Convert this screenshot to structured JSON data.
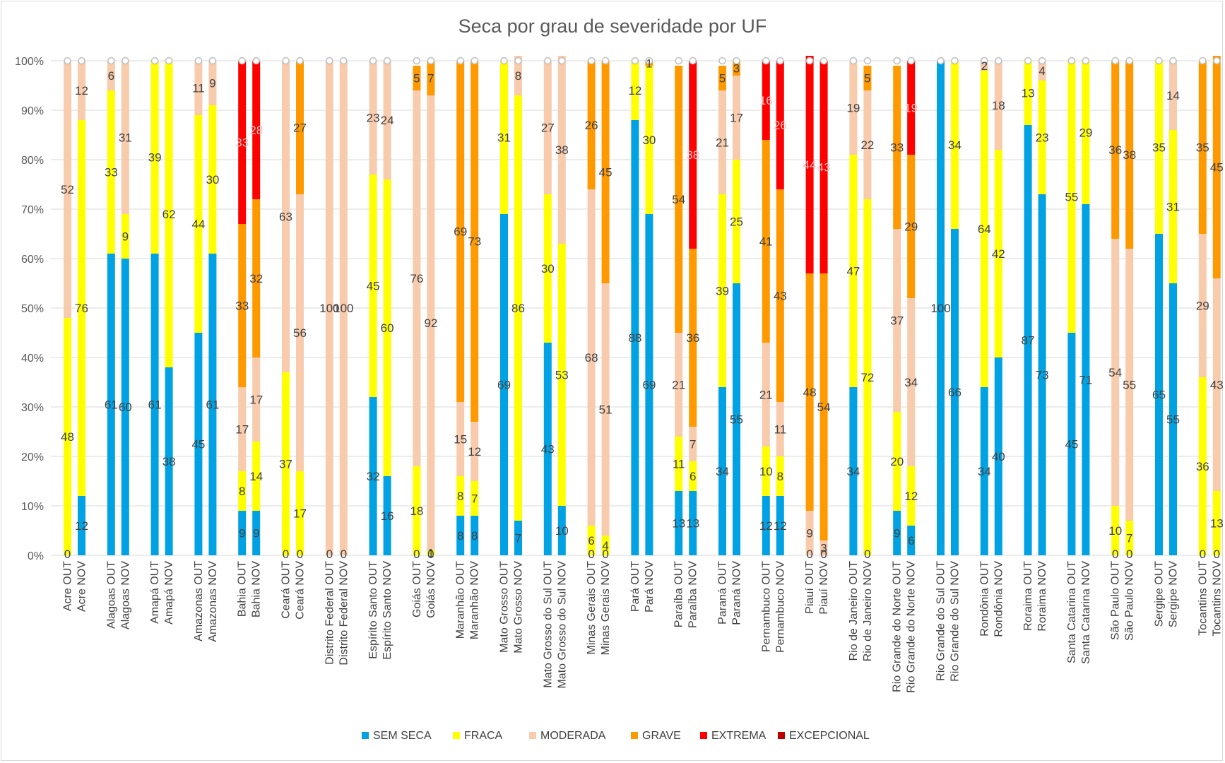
{
  "chart_data": {
    "type": "bar",
    "stacked": true,
    "title": "Seca por grau de severidade por UF",
    "xlabel": "",
    "ylabel": "",
    "ylim": [
      0,
      100
    ],
    "y_ticks": [
      "0%",
      "10%",
      "20%",
      "30%",
      "40%",
      "50%",
      "60%",
      "70%",
      "80%",
      "90%",
      "100%"
    ],
    "grid": true,
    "legend_position": "bottom",
    "states": [
      "Acre",
      "Alagoas",
      "Amapá",
      "Amazonas",
      "Bahia",
      "Ceará",
      "Distrito Federal",
      "Espírito Santo",
      "Goiás",
      "Maranhão",
      "Mato Grosso",
      "Mato Grosso do Sul",
      "Minas Gerais",
      "Pará",
      "Paraíba",
      "Paraná",
      "Pernambuco",
      "Piauí",
      "Rio de Janeiro",
      "Rio Grande do Norte",
      "Rio Grande do Sul",
      "Rondônia",
      "Roraima",
      "Santa Catarina",
      "São Paulo",
      "Sergipe",
      "Tocantins"
    ],
    "categories": [
      "Acre OUT",
      "Acre NOV",
      "Alagoas OUT",
      "Alagoas NOV",
      "Amapá OUT",
      "Amapá NOV",
      "Amazonas OUT",
      "Amazonas NOV",
      "Bahia OUT",
      "Bahia NOV",
      "Ceará OUT",
      "Ceará NOV",
      "Distrito Federal OUT",
      "Distrito Federal NOV",
      "Espírito Santo OUT",
      "Espírito Santo NOV",
      "Goiás OUT",
      "Goiás NOV",
      "Maranhão OUT",
      "Maranhão NOV",
      "Mato Grosso OUT",
      "Mato Grosso NOV",
      "Mato Grosso do Sul OUT",
      "Mato Grosso do Sul NOV",
      "Minas Gerais OUT",
      "Minas Gerais NOV",
      "Pará OUT",
      "Pará NOV",
      "Paraíba OUT",
      "Paraíba NOV",
      "Paraná OUT",
      "Paraná NOV",
      "Pernambuco OUT",
      "Pernambuco NOV",
      "Piauí OUT",
      "Piauí NOV",
      "Rio de Janeiro OUT",
      "Rio de Janeiro NOV",
      "Rio Grande do Norte OUT",
      "Rio Grande do Norte NOV",
      "Rio Grande do Sul OUT",
      "Rio Grande do Sul NOV",
      "Rondônia OUT",
      "Rondônia NOV",
      "Roraima OUT",
      "Roraima NOV",
      "Santa Catarina OUT",
      "Santa Catarina NOV",
      "São Paulo OUT",
      "São Paulo NOV",
      "Sergipe OUT",
      "Sergipe NOV",
      "Tocantins OUT",
      "Tocantins NOV"
    ],
    "series": [
      {
        "name": "SEM SECA",
        "color": "#00a2e3",
        "label_color": "#404040",
        "values": [
          0,
          12,
          61,
          60,
          61,
          38,
          45,
          61,
          9,
          9,
          0,
          0,
          0,
          0,
          32,
          16,
          0,
          0,
          8,
          8,
          69,
          7,
          43,
          10,
          0,
          0,
          88,
          69,
          13,
          13,
          34,
          55,
          12,
          12,
          0,
          0,
          34,
          0,
          9,
          6,
          100,
          66,
          34,
          40,
          87,
          73,
          45,
          71,
          0,
          0,
          65,
          55,
          0,
          0
        ]
      },
      {
        "name": "FRACA",
        "color": "#ffff00",
        "label_color": "#404040",
        "values": [
          48,
          76,
          33,
          9,
          39,
          62,
          44,
          30,
          8,
          14,
          37,
          17,
          0,
          0,
          45,
          60,
          18,
          1,
          8,
          7,
          31,
          86,
          30,
          53,
          6,
          4,
          12,
          30,
          11,
          6,
          39,
          25,
          10,
          8,
          0,
          0,
          47,
          72,
          20,
          12,
          0,
          34,
          64,
          42,
          13,
          23,
          55,
          29,
          10,
          7,
          35,
          31,
          36,
          13
        ]
      },
      {
        "name": "MODERADA",
        "color": "#f8cbad",
        "label_color": "#404040",
        "values": [
          52,
          12,
          6,
          31,
          0,
          0,
          11,
          9,
          17,
          17,
          63,
          56,
          100,
          100,
          23,
          24,
          76,
          92,
          15,
          12,
          0,
          8,
          27,
          38,
          68,
          51,
          0,
          0,
          21,
          7,
          21,
          17,
          21,
          11,
          9,
          3,
          19,
          22,
          37,
          34,
          0,
          0,
          2,
          18,
          0,
          4,
          0,
          0,
          54,
          55,
          0,
          14,
          29,
          43
        ]
      },
      {
        "name": "GRAVE",
        "color": "#ff9900",
        "label_color": "#404040",
        "values": [
          0,
          0,
          0,
          0,
          0,
          0,
          0,
          0,
          33,
          32,
          0,
          27,
          0,
          0,
          0,
          0,
          5,
          7,
          69,
          73,
          0,
          0,
          0,
          0,
          26,
          45,
          0,
          1,
          54,
          36,
          5,
          3,
          41,
          43,
          48,
          54,
          0,
          5,
          33,
          29,
          0,
          0,
          0,
          0,
          0,
          0,
          0,
          0,
          36,
          38,
          0,
          0,
          35,
          45
        ]
      },
      {
        "name": "EXTREMA",
        "color": "#ff0000",
        "label_color": "#f3c1c1",
        "values": [
          0,
          0,
          0,
          0,
          0,
          0,
          0,
          0,
          33,
          28,
          0,
          0,
          0,
          0,
          0,
          0,
          0,
          0,
          0,
          0,
          0,
          0,
          0,
          0,
          0,
          0,
          0,
          0,
          0,
          38,
          0,
          0,
          16,
          26,
          44,
          43,
          0,
          0,
          0,
          19,
          0,
          0,
          0,
          0,
          0,
          0,
          0,
          0,
          0,
          0,
          0,
          0,
          0,
          0
        ]
      },
      {
        "name": "EXCEPCIONAL",
        "color": "#c00000",
        "label_color": "#404040",
        "values": [
          0,
          0,
          0,
          0,
          0,
          0,
          0,
          0,
          0,
          0,
          0,
          0,
          0,
          0,
          0,
          0,
          0,
          0,
          0,
          0,
          0,
          0,
          0,
          0,
          0,
          0,
          0,
          0,
          0,
          0,
          0,
          0,
          0,
          0,
          0,
          0,
          0,
          0,
          0,
          0,
          0,
          0,
          0,
          0,
          0,
          0,
          0,
          0,
          0,
          0,
          0,
          0,
          0,
          0
        ]
      }
    ],
    "visible_labels": {
      "SEM SECA": [
        0,
        12,
        61,
        60,
        61,
        38,
        45,
        61,
        9,
        9,
        0,
        0,
        0,
        0,
        32,
        16,
        0,
        0,
        8,
        8,
        69,
        7,
        43,
        10,
        0,
        0,
        88,
        69,
        13,
        13,
        34,
        55,
        12,
        12,
        0,
        0,
        34,
        0,
        9,
        6,
        100,
        66,
        34,
        40,
        87,
        73,
        45,
        71,
        0,
        0,
        65,
        55,
        0,
        0
      ],
      "FRACA": [
        48,
        76,
        33,
        9,
        39,
        62,
        44,
        30,
        8,
        14,
        37,
        17,
        0,
        0,
        45,
        60,
        18,
        1,
        8,
        7,
        31,
        86,
        30,
        53,
        6,
        4,
        12,
        30,
        11,
        6,
        39,
        25,
        10,
        8,
        0,
        0,
        47,
        72,
        20,
        12,
        0,
        34,
        64,
        42,
        13,
        23,
        55,
        29,
        10,
        7,
        35,
        31,
        36,
        13
      ],
      "MODERADA": [
        52,
        12,
        6,
        31,
        0,
        0,
        11,
        9,
        17,
        17,
        63,
        56,
        100,
        100,
        23,
        24,
        76,
        92,
        15,
        12,
        0,
        8,
        27,
        38,
        68,
        51,
        0,
        0,
        21,
        7,
        21,
        17,
        21,
        11,
        9,
        3,
        19,
        22,
        37,
        34,
        0,
        0,
        2,
        18,
        0,
        4,
        0,
        0,
        54,
        55,
        0,
        14,
        29,
        43
      ],
      "GRAVE": [
        0,
        0,
        0,
        0,
        0,
        0,
        0,
        0,
        33,
        32,
        0,
        27,
        0,
        0,
        0,
        0,
        5,
        7,
        69,
        73,
        0,
        0,
        0,
        0,
        26,
        45,
        0,
        1,
        54,
        36,
        5,
        3,
        41,
        43,
        48,
        54,
        0,
        5,
        33,
        29,
        0,
        0,
        0,
        0,
        0,
        0,
        0,
        0,
        36,
        38,
        0,
        0,
        35,
        45
      ],
      "EXTREMA": [
        0,
        0,
        0,
        0,
        0,
        0,
        0,
        0,
        33,
        28,
        0,
        0,
        0,
        0,
        0,
        0,
        0,
        0,
        0,
        0,
        0,
        0,
        0,
        0,
        0,
        0,
        0,
        0,
        0,
        38,
        0,
        0,
        16,
        26,
        44,
        43,
        0,
        0,
        0,
        19,
        0,
        0,
        0,
        0,
        0,
        0,
        0,
        0,
        0,
        0,
        0,
        0,
        0,
        0
      ]
    }
  }
}
